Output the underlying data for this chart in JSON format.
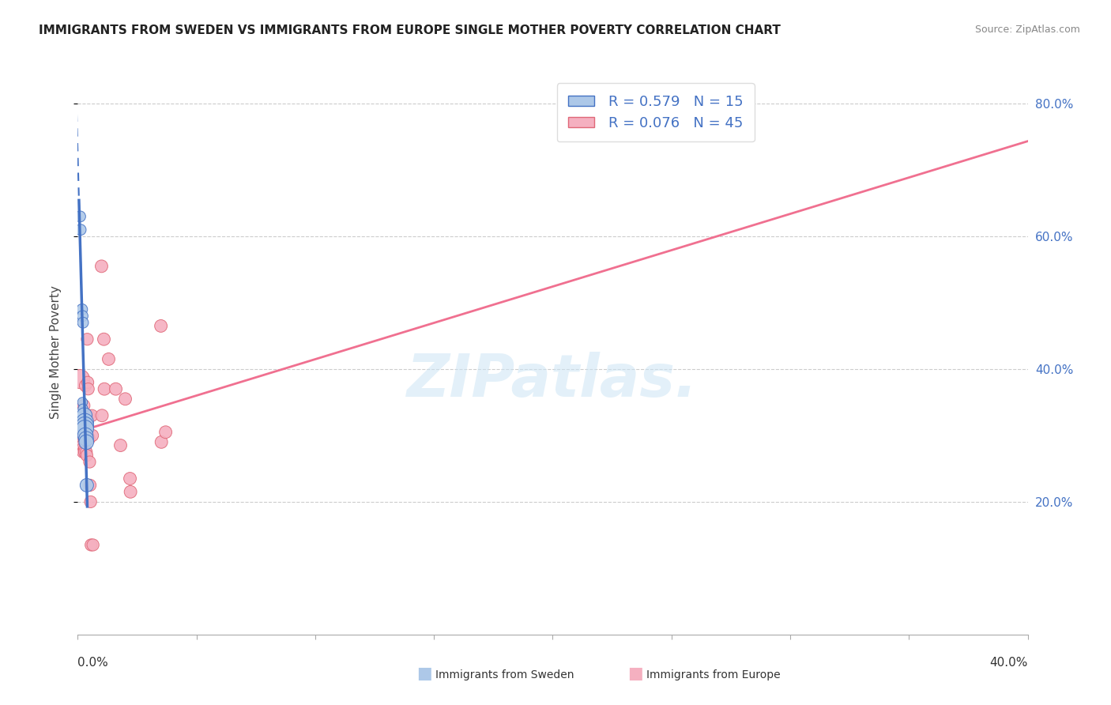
{
  "title": "IMMIGRANTS FROM SWEDEN VS IMMIGRANTS FROM EUROPE SINGLE MOTHER POVERTY CORRELATION CHART",
  "source": "Source: ZipAtlas.com",
  "ylabel": "Single Mother Poverty",
  "legend_sweden": {
    "R": 0.579,
    "N": 15
  },
  "legend_europe": {
    "R": 0.076,
    "N": 45
  },
  "sweden_color": "#adc8e8",
  "europe_color": "#f5b0c0",
  "sweden_line_color": "#4472c4",
  "europe_line_color": "#f07090",
  "sweden_points": [
    [
      0.001,
      0.63
    ],
    [
      0.0012,
      0.61
    ],
    [
      0.0018,
      0.49
    ],
    [
      0.002,
      0.48
    ],
    [
      0.0022,
      0.47
    ],
    [
      0.002,
      0.35
    ],
    [
      0.0022,
      0.34
    ],
    [
      0.0028,
      0.33
    ],
    [
      0.003,
      0.32
    ],
    [
      0.003,
      0.315
    ],
    [
      0.003,
      0.31
    ],
    [
      0.0032,
      0.3
    ],
    [
      0.0035,
      0.295
    ],
    [
      0.0036,
      0.29
    ],
    [
      0.0038,
      0.225
    ]
  ],
  "europe_points": [
    [
      0.001,
      0.385
    ],
    [
      0.0012,
      0.315
    ],
    [
      0.0014,
      0.305
    ],
    [
      0.0016,
      0.29
    ],
    [
      0.0018,
      0.295
    ],
    [
      0.002,
      0.285
    ],
    [
      0.002,
      0.28
    ],
    [
      0.0022,
      0.275
    ],
    [
      0.0025,
      0.345
    ],
    [
      0.0026,
      0.32
    ],
    [
      0.0028,
      0.315
    ],
    [
      0.0028,
      0.295
    ],
    [
      0.003,
      0.28
    ],
    [
      0.003,
      0.275
    ],
    [
      0.0032,
      0.375
    ],
    [
      0.0033,
      0.32
    ],
    [
      0.0034,
      0.315
    ],
    [
      0.0035,
      0.295
    ],
    [
      0.0036,
      0.275
    ],
    [
      0.0038,
      0.27
    ],
    [
      0.004,
      0.445
    ],
    [
      0.0042,
      0.38
    ],
    [
      0.0044,
      0.37
    ],
    [
      0.0046,
      0.33
    ],
    [
      0.0048,
      0.295
    ],
    [
      0.005,
      0.26
    ],
    [
      0.0052,
      0.225
    ],
    [
      0.0054,
      0.2
    ],
    [
      0.0056,
      0.135
    ],
    [
      0.006,
      0.33
    ],
    [
      0.0062,
      0.3
    ],
    [
      0.0064,
      0.135
    ],
    [
      0.01,
      0.555
    ],
    [
      0.0102,
      0.33
    ],
    [
      0.011,
      0.445
    ],
    [
      0.0112,
      0.37
    ],
    [
      0.013,
      0.415
    ],
    [
      0.016,
      0.37
    ],
    [
      0.018,
      0.285
    ],
    [
      0.02,
      0.355
    ],
    [
      0.022,
      0.235
    ],
    [
      0.0222,
      0.215
    ],
    [
      0.035,
      0.465
    ],
    [
      0.0352,
      0.29
    ],
    [
      0.037,
      0.305
    ]
  ],
  "xlim": [
    0.0,
    0.4
  ],
  "ylim": [
    0.0,
    0.85
  ],
  "yticks": [
    0.2,
    0.4,
    0.6,
    0.8
  ],
  "ytick_labels": [
    "20.0%",
    "40.0%",
    "60.0%",
    "80.0%"
  ],
  "xtick_labels_bottom": [
    "0.0%",
    "40.0%"
  ],
  "sweden_sizes": [
    100,
    100,
    100,
    100,
    100,
    80,
    80,
    200,
    250,
    250,
    250,
    200,
    180,
    180,
    150
  ],
  "europe_sizes": [
    300,
    130,
    130,
    130,
    120,
    120,
    120,
    120,
    130,
    130,
    130,
    130,
    130,
    130,
    120,
    120,
    120,
    120,
    120,
    120,
    120,
    120,
    120,
    120,
    120,
    120,
    120,
    120,
    120,
    120,
    120,
    120,
    130,
    130,
    130,
    130,
    130,
    130,
    130,
    130,
    130,
    130,
    130,
    130,
    130
  ]
}
